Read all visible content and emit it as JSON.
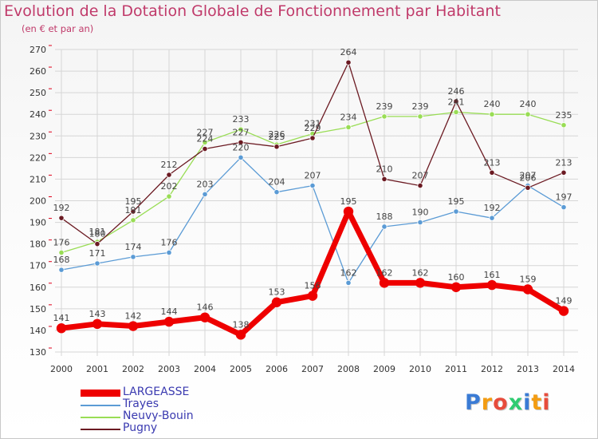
{
  "header": {
    "title": "Evolution de la Dotation Globale de Fonctionnement par Habitant",
    "subtitle": "(en € et par an)"
  },
  "watermark": "Proxiti",
  "colors": {
    "title": "#c03a6a",
    "axis_text": "#333333",
    "data_label": "#444444",
    "legend_text": "#3a3ab0",
    "grid": "#d6d6d6",
    "tick_mark": "#e0001a"
  },
  "chart_data": {
    "type": "line",
    "title": "Evolution de la Dotation Globale de Fonctionnement par Habitant",
    "subtitle": "(en € et par an)",
    "xlabel": "",
    "ylabel": "",
    "x": [
      "2000",
      "2001",
      "2002",
      "2003",
      "2004",
      "2005",
      "2006",
      "2007",
      "2008",
      "2009",
      "2010",
      "2011",
      "2012",
      "2013",
      "2014"
    ],
    "ylim": [
      130,
      270
    ],
    "yticks": [
      130,
      140,
      150,
      160,
      170,
      180,
      190,
      200,
      210,
      220,
      230,
      240,
      250,
      260,
      270
    ],
    "grid": true,
    "legend_position": "bottom-left",
    "series": [
      {
        "name": "LARGEASSE",
        "color": "#ee0000",
        "width": 7,
        "marker_r": 6.2,
        "values": [
          141,
          143,
          142,
          144,
          146,
          138,
          153,
          156,
          195,
          162,
          162,
          160,
          161,
          159,
          149
        ]
      },
      {
        "name": "Trayes",
        "color": "#5b9bd5",
        "width": 1.3,
        "marker_r": 3.2,
        "values": [
          168,
          171,
          174,
          176,
          203,
          220,
          204,
          207,
          162,
          188,
          190,
          195,
          192,
          207,
          197
        ]
      },
      {
        "name": "Neuvy-Bouin",
        "color": "#99dd55",
        "width": 1.3,
        "marker_r": 3.2,
        "values": [
          176,
          181,
          191,
          202,
          227,
          233,
          226,
          231,
          234,
          239,
          239,
          241,
          240,
          240,
          235
        ]
      },
      {
        "name": "Pugny",
        "color": "#6b1a22",
        "width": 1.3,
        "marker_r": 3.2,
        "values": [
          192,
          180,
          195,
          212,
          224,
          227,
          225,
          229,
          264,
          210,
          207,
          246,
          213,
          206,
          213
        ]
      }
    ]
  }
}
